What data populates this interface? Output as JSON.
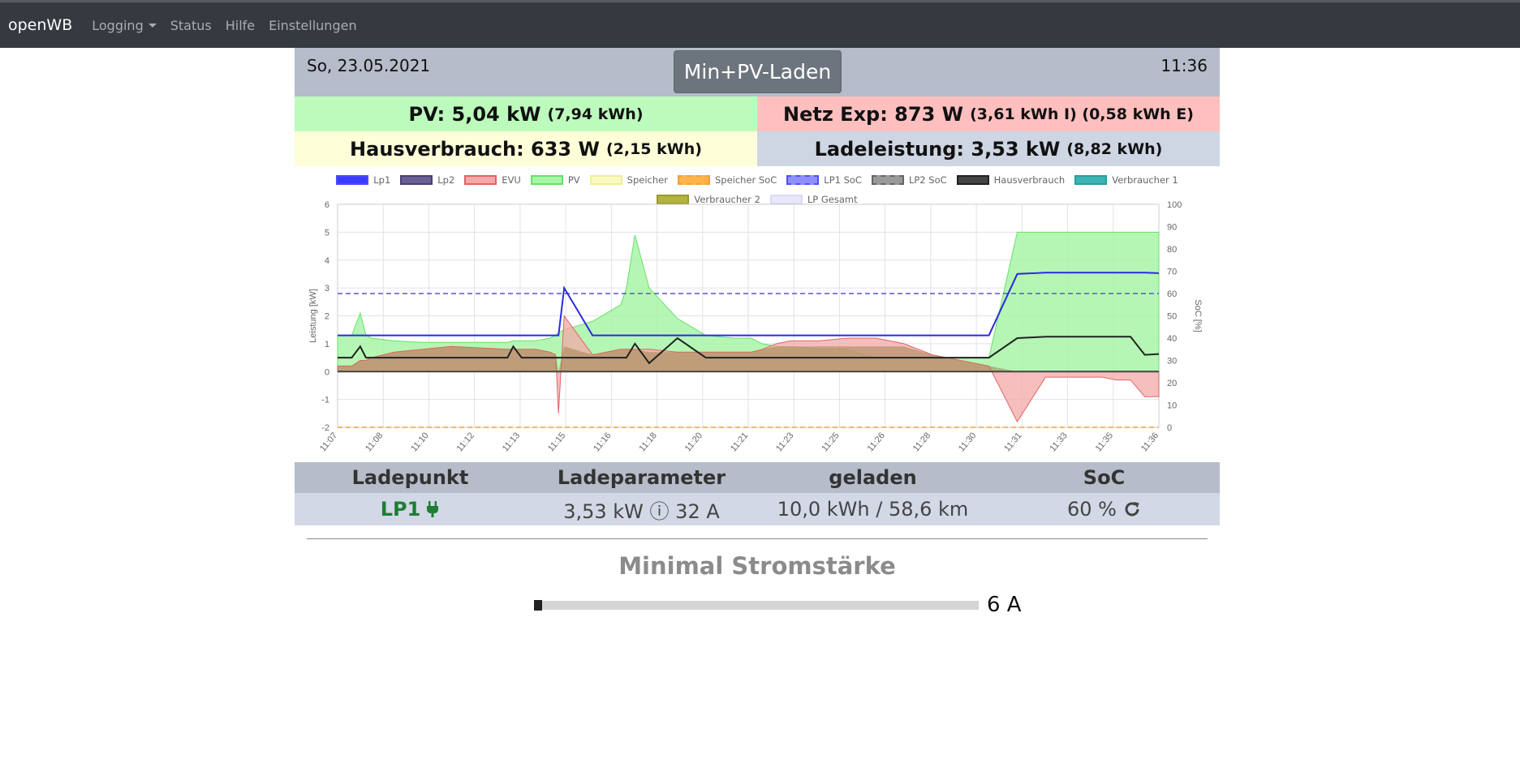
{
  "nav": {
    "brand": "openWB",
    "items": [
      "Logging",
      "Status",
      "Hilfe",
      "Einstellungen"
    ]
  },
  "header": {
    "date": "So, 23.05.2021",
    "time": "11:36",
    "mode": "Min+PV-Laden"
  },
  "summary": {
    "pv_main": "PV: 5,04 kW",
    "pv_sub": "(7,94 kWh)",
    "netz_main": "Netz Exp: 873 W",
    "netz_sub": "(3,61 kWh I) (0,58 kWh E)",
    "haus_main": "Hausverbrauch: 633 W",
    "haus_sub": "(2,15 kWh)",
    "lade_main": "Ladeleistung: 3,53 kW",
    "lade_sub": "(8,82 kWh)"
  },
  "chart_data": {
    "type": "line",
    "legend": [
      {
        "name": "Lp1",
        "color": "#4a4aff",
        "fill": "#3b3bff",
        "dashed": false
      },
      {
        "name": "Lp2",
        "color": "#4b3f7a",
        "fill": "#6a5f93",
        "dashed": false
      },
      {
        "name": "EVU",
        "color": "#e06464",
        "fill": "#f4a8a8",
        "dashed": false
      },
      {
        "name": "PV",
        "color": "#67e167",
        "fill": "#a8f5a8",
        "dashed": false
      },
      {
        "name": "Speicher",
        "color": "#eeee9e",
        "fill": "#fafac0",
        "dashed": false
      },
      {
        "name": "Speicher SoC",
        "color": "#f0a040",
        "fill": "#ffb34d",
        "dashed": true
      },
      {
        "name": "LP1 SoC",
        "color": "#5050ff",
        "fill": "#8f8fff",
        "dashed": true
      },
      {
        "name": "LP2 SoC",
        "color": "#666666",
        "fill": "#999999",
        "dashed": true
      },
      {
        "name": "Hausverbrauch",
        "color": "#222222",
        "fill": "#444444",
        "dashed": false
      },
      {
        "name": "Verbraucher 1",
        "color": "#2a9d9d",
        "fill": "#3fb3b3",
        "dashed": false
      },
      {
        "name": "Verbraucher 2",
        "color": "#9a9a2a",
        "fill": "#b3b340",
        "dashed": false
      },
      {
        "name": "LP Gesamt",
        "color": "#dadaf5",
        "fill": "#e8e8fa",
        "dashed": false
      }
    ],
    "ylabel": "Leistung [kW]",
    "y2label": "SoC [%]",
    "ylim": [
      -2,
      6
    ],
    "y2lim": [
      0,
      100
    ],
    "yticks": [
      "6",
      "5",
      "4",
      "3",
      "2",
      "1",
      "0",
      "-1",
      "-2"
    ],
    "y2ticks": [
      "100",
      "90",
      "80",
      "70",
      "60",
      "50",
      "40",
      "30",
      "20",
      "10",
      "0"
    ],
    "xticks": [
      "11:07",
      "11:08",
      "11:10",
      "11:12",
      "11:13",
      "11:15",
      "11:16",
      "11:18",
      "11:20",
      "11:21",
      "11:23",
      "11:25",
      "11:26",
      "11:28",
      "11:30",
      "11:31",
      "11:33",
      "11:35",
      "11:36"
    ],
    "x": [
      0,
      0.5,
      0.8,
      1,
      1.2,
      2,
      3,
      4,
      5,
      6,
      6.2,
      6.5,
      7,
      7.5,
      7.7,
      7.8,
      8,
      9,
      10,
      10.2,
      10.5,
      11,
      12,
      13,
      14,
      14.4,
      14.6,
      15,
      15.5,
      16,
      17,
      18,
      18.3,
      18.6,
      19,
      19.5,
      20,
      21,
      22,
      23,
      24,
      25,
      26,
      27,
      27.5,
      28,
      28.5,
      29
    ],
    "series": [
      {
        "name": "PV",
        "values": [
          1.3,
          1.3,
          2.1,
          1.3,
          1.2,
          1.1,
          1.05,
          1.05,
          1.05,
          1.05,
          1.1,
          1.1,
          1.1,
          1.2,
          1.3,
          1.4,
          1.5,
          1.8,
          2.4,
          3.0,
          4.9,
          3.0,
          1.9,
          1.3,
          1.2,
          1.2,
          1.2,
          1.0,
          0.9,
          0.9,
          0.8,
          0.8,
          0.7,
          0.6,
          0.5,
          0.5,
          0.5,
          0.5,
          0.5,
          0.5,
          5.0,
          5.0,
          5.0,
          5.0,
          5.0,
          5.0,
          5.0,
          5.0
        ]
      },
      {
        "name": "EVU",
        "values": [
          0.2,
          0.2,
          0.4,
          0.4,
          0.5,
          0.7,
          0.8,
          0.9,
          0.85,
          0.8,
          0.8,
          0.8,
          0.8,
          0.7,
          0.6,
          -1.5,
          2.0,
          0.6,
          0.8,
          0.8,
          0.8,
          0.8,
          0.7,
          0.7,
          0.7,
          0.7,
          0.7,
          0.8,
          1.0,
          1.1,
          1.1,
          1.2,
          1.2,
          1.2,
          1.2,
          1.1,
          1.0,
          0.6,
          0.4,
          0.2,
          -1.8,
          -0.2,
          -0.2,
          -0.2,
          -0.3,
          -0.3,
          -0.9,
          -0.9
        ]
      },
      {
        "name": "Lp1",
        "values": [
          1.3,
          1.3,
          1.3,
          1.3,
          1.3,
          1.3,
          1.3,
          1.3,
          1.3,
          1.3,
          1.3,
          1.3,
          1.3,
          1.3,
          1.3,
          1.3,
          3.0,
          1.3,
          1.3,
          1.3,
          1.3,
          1.3,
          1.3,
          1.3,
          1.3,
          1.3,
          1.3,
          1.3,
          1.3,
          1.3,
          1.3,
          1.3,
          1.3,
          1.3,
          1.3,
          1.3,
          1.3,
          1.3,
          1.3,
          1.3,
          3.5,
          3.55,
          3.55,
          3.55,
          3.55,
          3.55,
          3.55,
          3.53
        ]
      },
      {
        "name": "Hausverbrauch",
        "values": [
          0.5,
          0.5,
          0.9,
          0.5,
          0.5,
          0.5,
          0.5,
          0.5,
          0.5,
          0.5,
          0.9,
          0.5,
          0.5,
          0.5,
          0.5,
          0.5,
          0.5,
          0.5,
          0.5,
          0.5,
          1.0,
          0.3,
          1.2,
          0.5,
          0.5,
          0.5,
          0.5,
          0.5,
          0.5,
          0.5,
          0.5,
          0.5,
          0.5,
          0.5,
          0.5,
          0.5,
          0.5,
          0.5,
          0.5,
          0.5,
          1.2,
          1.25,
          1.25,
          1.25,
          1.25,
          1.25,
          0.6,
          0.63
        ]
      }
    ],
    "lp1_soc": 60,
    "speicher_soc": 0
  },
  "table": {
    "headers": [
      "Ladepunkt",
      "Ladeparameter",
      "geladen",
      "SoC"
    ],
    "lp_name": "LP1",
    "params": "3,53 kW ⓘ 32 A",
    "charged": "10,0 kWh / 58,6 km",
    "soc": "60 %"
  },
  "section": {
    "title": "Minimal Stromstärke",
    "slider_value": "6 A",
    "slider_fraction": 0
  }
}
